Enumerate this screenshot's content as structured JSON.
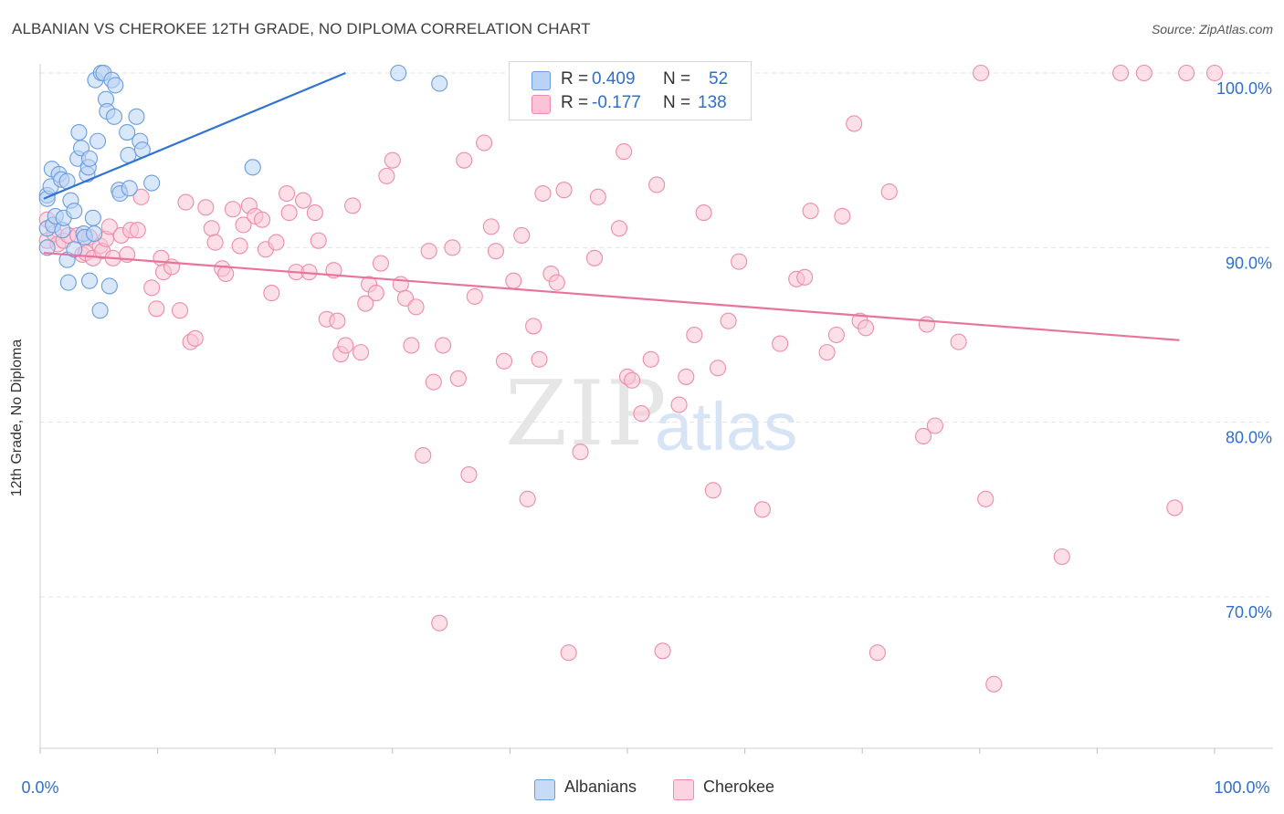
{
  "title": "ALBANIAN VS CHEROKEE 12TH GRADE, NO DIPLOMA CORRELATION CHART",
  "source": "Source: ZipAtlas.com",
  "watermark": {
    "zip": "ZIP",
    "atlas": "atlas"
  },
  "legend": {
    "rows": [
      {
        "r_label": "R =",
        "r_value": "0.409",
        "n_label": "N =",
        "n_value": "52"
      },
      {
        "r_label": "R =",
        "r_value": "-0.177",
        "n_label": "N =",
        "n_value": "138"
      }
    ]
  },
  "bottom_legend": {
    "items": [
      "Albanians",
      "Cherokee"
    ]
  },
  "chart_data": {
    "type": "scatter",
    "title": "ALBANIAN VS CHEROKEE 12TH GRADE, NO DIPLOMA CORRELATION CHART",
    "xlabel": "",
    "ylabel": "12th Grade, No Diploma",
    "xlim": [
      0,
      100
    ],
    "ylim": [
      60.5,
      101.5
    ],
    "x_tick_labels": [
      "0.0%",
      "100.0%"
    ],
    "y_ticks": [
      {
        "value": 70,
        "label": "70.0%"
      },
      {
        "value": 80,
        "label": "80.0%"
      },
      {
        "value": 90,
        "label": "90.0%"
      },
      {
        "value": 100,
        "label": "100.0%"
      }
    ],
    "grid": true,
    "legend_position": "top-center",
    "colors": {
      "albanians": "#6a9de0",
      "albanians_fill": "#b9d3f5",
      "albanians_line": "#2f74d0",
      "cherokee": "#ee8bab",
      "cherokee_fill": "#fbc4d6",
      "cherokee_line": "#e8749d",
      "axis_label": "#2f6fca"
    },
    "series": [
      {
        "name": "Albanians",
        "r": 0.409,
        "n": 52,
        "trend": {
          "x": [
            0.3,
            26.0
          ],
          "y": [
            92.8,
            100.0
          ]
        },
        "points": [
          [
            0.6,
            93.0
          ],
          [
            0.6,
            92.8
          ],
          [
            0.6,
            91.1
          ],
          [
            0.6,
            90.0
          ],
          [
            0.9,
            93.5
          ],
          [
            1.0,
            94.5
          ],
          [
            1.1,
            91.3
          ],
          [
            1.3,
            91.8
          ],
          [
            1.6,
            94.2
          ],
          [
            1.8,
            93.9
          ],
          [
            1.9,
            91.0
          ],
          [
            2.0,
            91.7
          ],
          [
            2.3,
            93.8
          ],
          [
            2.3,
            89.3
          ],
          [
            2.4,
            88.0
          ],
          [
            2.6,
            92.7
          ],
          [
            2.9,
            92.1
          ],
          [
            2.9,
            89.9
          ],
          [
            3.2,
            95.1
          ],
          [
            3.3,
            96.6
          ],
          [
            3.5,
            95.7
          ],
          [
            3.7,
            90.8
          ],
          [
            3.8,
            90.6
          ],
          [
            4.0,
            94.2
          ],
          [
            4.1,
            94.6
          ],
          [
            4.2,
            95.1
          ],
          [
            4.2,
            88.1
          ],
          [
            4.5,
            91.7
          ],
          [
            4.6,
            90.8
          ],
          [
            4.7,
            99.6
          ],
          [
            4.9,
            96.1
          ],
          [
            5.1,
            86.4
          ],
          [
            5.2,
            100.0
          ],
          [
            5.4,
            100.0
          ],
          [
            5.6,
            98.5
          ],
          [
            5.7,
            97.8
          ],
          [
            5.9,
            87.8
          ],
          [
            6.1,
            99.6
          ],
          [
            6.3,
            97.5
          ],
          [
            6.4,
            99.3
          ],
          [
            6.7,
            93.3
          ],
          [
            6.8,
            93.1
          ],
          [
            7.4,
            96.6
          ],
          [
            7.5,
            95.3
          ],
          [
            7.6,
            93.4
          ],
          [
            8.2,
            97.5
          ],
          [
            8.5,
            96.1
          ],
          [
            8.7,
            95.6
          ],
          [
            9.5,
            93.7
          ],
          [
            18.1,
            94.6
          ],
          [
            30.5,
            100.0
          ],
          [
            34.0,
            99.4
          ]
        ]
      },
      {
        "name": "Cherokee",
        "r": -0.177,
        "n": 138,
        "trend": {
          "x": [
            0.3,
            97.0
          ],
          "y": [
            89.7,
            84.7
          ]
        },
        "points": [
          [
            0.6,
            91.6
          ],
          [
            0.6,
            90.4
          ],
          [
            1.2,
            90.8
          ],
          [
            1.5,
            90.2
          ],
          [
            2.0,
            90.4
          ],
          [
            2.4,
            90.7
          ],
          [
            3.2,
            90.7
          ],
          [
            3.6,
            89.6
          ],
          [
            3.9,
            89.7
          ],
          [
            4.2,
            90.6
          ],
          [
            4.5,
            89.4
          ],
          [
            5.1,
            90.1
          ],
          [
            5.3,
            89.8
          ],
          [
            5.6,
            90.5
          ],
          [
            5.9,
            91.2
          ],
          [
            6.2,
            89.4
          ],
          [
            6.9,
            90.7
          ],
          [
            7.4,
            89.6
          ],
          [
            7.7,
            91.0
          ],
          [
            8.3,
            91.0
          ],
          [
            8.6,
            92.9
          ],
          [
            9.5,
            87.7
          ],
          [
            9.9,
            86.5
          ],
          [
            10.3,
            89.4
          ],
          [
            10.5,
            88.6
          ],
          [
            11.2,
            88.9
          ],
          [
            11.9,
            86.4
          ],
          [
            12.4,
            92.6
          ],
          [
            12.8,
            84.6
          ],
          [
            13.2,
            84.8
          ],
          [
            14.1,
            92.3
          ],
          [
            14.6,
            91.1
          ],
          [
            14.9,
            90.3
          ],
          [
            15.5,
            88.8
          ],
          [
            15.8,
            88.5
          ],
          [
            16.4,
            92.2
          ],
          [
            17.0,
            90.1
          ],
          [
            17.3,
            91.3
          ],
          [
            17.8,
            92.4
          ],
          [
            18.3,
            91.8
          ],
          [
            18.9,
            91.6
          ],
          [
            19.2,
            89.9
          ],
          [
            19.7,
            87.4
          ],
          [
            20.1,
            90.3
          ],
          [
            21.0,
            93.1
          ],
          [
            21.2,
            92.0
          ],
          [
            21.8,
            88.6
          ],
          [
            22.4,
            92.7
          ],
          [
            22.9,
            88.6
          ],
          [
            23.4,
            92.0
          ],
          [
            23.7,
            90.4
          ],
          [
            24.4,
            85.9
          ],
          [
            25.0,
            88.7
          ],
          [
            25.3,
            85.8
          ],
          [
            25.6,
            83.9
          ],
          [
            26.0,
            84.4
          ],
          [
            26.6,
            92.4
          ],
          [
            27.3,
            84.0
          ],
          [
            27.7,
            86.8
          ],
          [
            28.0,
            87.9
          ],
          [
            28.6,
            87.4
          ],
          [
            29.0,
            89.1
          ],
          [
            29.5,
            94.1
          ],
          [
            30.0,
            95.0
          ],
          [
            30.7,
            87.9
          ],
          [
            31.1,
            87.1
          ],
          [
            31.6,
            84.4
          ],
          [
            32.0,
            86.6
          ],
          [
            32.6,
            78.1
          ],
          [
            33.1,
            89.8
          ],
          [
            33.5,
            82.3
          ],
          [
            34.0,
            68.5
          ],
          [
            34.3,
            84.4
          ],
          [
            35.1,
            90.0
          ],
          [
            35.6,
            82.5
          ],
          [
            36.1,
            95.0
          ],
          [
            36.5,
            77.0
          ],
          [
            37.0,
            87.2
          ],
          [
            37.8,
            96.0
          ],
          [
            38.4,
            91.2
          ],
          [
            38.8,
            89.8
          ],
          [
            39.5,
            83.5
          ],
          [
            40.3,
            88.1
          ],
          [
            41.0,
            90.7
          ],
          [
            41.5,
            75.6
          ],
          [
            42.0,
            85.5
          ],
          [
            42.5,
            83.6
          ],
          [
            42.8,
            93.1
          ],
          [
            43.5,
            88.5
          ],
          [
            44.0,
            88.0
          ],
          [
            44.6,
            93.3
          ],
          [
            45.0,
            66.8
          ],
          [
            46.0,
            78.3
          ],
          [
            47.2,
            89.4
          ],
          [
            47.5,
            92.9
          ],
          [
            49.3,
            91.1
          ],
          [
            49.7,
            95.5
          ],
          [
            50.0,
            82.6
          ],
          [
            50.4,
            82.4
          ],
          [
            51.2,
            80.5
          ],
          [
            52.0,
            83.6
          ],
          [
            52.5,
            93.6
          ],
          [
            53.0,
            66.9
          ],
          [
            53.3,
            100.0
          ],
          [
            54.4,
            81.0
          ],
          [
            55.0,
            82.6
          ],
          [
            55.7,
            85.0
          ],
          [
            56.5,
            92.0
          ],
          [
            57.3,
            76.1
          ],
          [
            57.7,
            83.1
          ],
          [
            58.6,
            85.8
          ],
          [
            59.5,
            89.2
          ],
          [
            61.5,
            75.0
          ],
          [
            63.0,
            84.5
          ],
          [
            64.4,
            88.2
          ],
          [
            65.1,
            88.3
          ],
          [
            65.6,
            92.1
          ],
          [
            67.0,
            84.0
          ],
          [
            67.8,
            85.0
          ],
          [
            68.3,
            91.8
          ],
          [
            69.3,
            97.1
          ],
          [
            69.8,
            85.8
          ],
          [
            70.3,
            85.4
          ],
          [
            71.3,
            66.8
          ],
          [
            72.3,
            93.2
          ],
          [
            75.2,
            79.2
          ],
          [
            75.5,
            85.6
          ],
          [
            76.2,
            79.8
          ],
          [
            78.2,
            84.6
          ],
          [
            80.1,
            100.0
          ],
          [
            80.5,
            75.6
          ],
          [
            81.2,
            65.0
          ],
          [
            87.0,
            72.3
          ],
          [
            92.0,
            100.0
          ],
          [
            94.0,
            100.0
          ],
          [
            96.6,
            75.1
          ],
          [
            97.6,
            100.0
          ],
          [
            100.0,
            100.0
          ]
        ]
      }
    ]
  }
}
